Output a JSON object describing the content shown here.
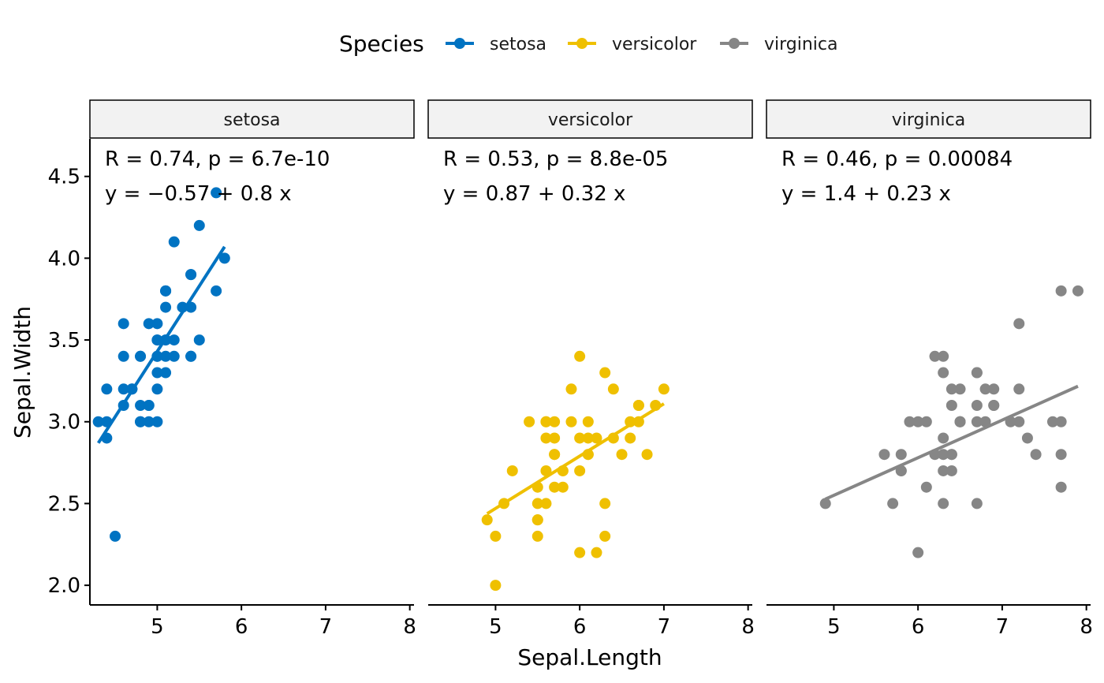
{
  "chart_data": {
    "type": "scatter",
    "facet_by": "Species",
    "xlabel": "Sepal.Length",
    "ylabel": "Sepal.Width",
    "xticks": [
      5,
      6,
      7,
      8
    ],
    "yticks": [
      "2.0",
      "2.5",
      "3.0",
      "3.5",
      "4.0",
      "4.5"
    ],
    "xlim": [
      4.2,
      8.05
    ],
    "ylim": [
      1.88,
      4.73
    ],
    "grid": false,
    "legend": {
      "title": "Species",
      "position": "top",
      "entries": [
        "setosa",
        "versicolor",
        "virginica"
      ]
    },
    "colors": {
      "setosa": "#0073C2",
      "versicolor": "#EFC000",
      "virginica": "#868686"
    },
    "panels": [
      {
        "name": "setosa",
        "annotation_r": "R = 0.74, p = 6.7e-10",
        "annotation_eq": "y = −0.57 + 0.8 x",
        "regression": {
          "intercept": -0.57,
          "slope": 0.8,
          "x_range": [
            4.3,
            5.8
          ]
        },
        "points": [
          [
            5.1,
            3.5
          ],
          [
            4.9,
            3.0
          ],
          [
            4.7,
            3.2
          ],
          [
            4.6,
            3.1
          ],
          [
            5.0,
            3.6
          ],
          [
            5.4,
            3.9
          ],
          [
            4.6,
            3.4
          ],
          [
            5.0,
            3.4
          ],
          [
            4.4,
            2.9
          ],
          [
            4.9,
            3.1
          ],
          [
            5.4,
            3.7
          ],
          [
            4.8,
            3.4
          ],
          [
            4.8,
            3.0
          ],
          [
            4.3,
            3.0
          ],
          [
            5.8,
            4.0
          ],
          [
            5.7,
            4.4
          ],
          [
            5.4,
            3.9
          ],
          [
            5.1,
            3.5
          ],
          [
            5.7,
            3.8
          ],
          [
            5.1,
            3.8
          ],
          [
            5.4,
            3.4
          ],
          [
            5.1,
            3.7
          ],
          [
            4.6,
            3.6
          ],
          [
            5.1,
            3.3
          ],
          [
            4.8,
            3.4
          ],
          [
            5.0,
            3.0
          ],
          [
            5.0,
            3.4
          ],
          [
            5.2,
            3.5
          ],
          [
            5.2,
            3.4
          ],
          [
            4.7,
            3.2
          ],
          [
            4.8,
            3.1
          ],
          [
            5.4,
            3.4
          ],
          [
            5.2,
            4.1
          ],
          [
            5.5,
            4.2
          ],
          [
            4.9,
            3.1
          ],
          [
            5.0,
            3.2
          ],
          [
            5.5,
            3.5
          ],
          [
            4.9,
            3.6
          ],
          [
            4.4,
            3.0
          ],
          [
            5.1,
            3.4
          ],
          [
            5.0,
            3.5
          ],
          [
            4.5,
            2.3
          ],
          [
            4.4,
            3.2
          ],
          [
            5.0,
            3.5
          ],
          [
            5.1,
            3.8
          ],
          [
            4.8,
            3.0
          ],
          [
            5.1,
            3.8
          ],
          [
            4.6,
            3.2
          ],
          [
            5.3,
            3.7
          ],
          [
            5.0,
            3.3
          ]
        ]
      },
      {
        "name": "versicolor",
        "annotation_r": "R = 0.53, p = 8.8e-05",
        "annotation_eq": "y = 0.87 + 0.32 x",
        "regression": {
          "intercept": 0.87,
          "slope": 0.32,
          "x_range": [
            4.9,
            7.0
          ]
        },
        "points": [
          [
            7.0,
            3.2
          ],
          [
            6.4,
            3.2
          ],
          [
            6.9,
            3.1
          ],
          [
            5.5,
            2.3
          ],
          [
            6.5,
            2.8
          ],
          [
            5.7,
            2.8
          ],
          [
            6.3,
            3.3
          ],
          [
            4.9,
            2.4
          ],
          [
            6.6,
            2.9
          ],
          [
            5.2,
            2.7
          ],
          [
            5.0,
            2.0
          ],
          [
            5.9,
            3.0
          ],
          [
            6.0,
            2.2
          ],
          [
            6.1,
            2.9
          ],
          [
            5.6,
            2.9
          ],
          [
            6.7,
            3.1
          ],
          [
            5.6,
            3.0
          ],
          [
            5.8,
            2.7
          ],
          [
            6.2,
            2.2
          ],
          [
            5.6,
            2.5
          ],
          [
            5.9,
            3.2
          ],
          [
            6.1,
            2.8
          ],
          [
            6.3,
            2.5
          ],
          [
            6.1,
            2.8
          ],
          [
            6.4,
            2.9
          ],
          [
            6.6,
            3.0
          ],
          [
            6.8,
            2.8
          ],
          [
            6.7,
            3.0
          ],
          [
            6.0,
            2.9
          ],
          [
            5.7,
            2.6
          ],
          [
            5.5,
            2.4
          ],
          [
            5.5,
            2.4
          ],
          [
            5.8,
            2.7
          ],
          [
            6.0,
            2.7
          ],
          [
            5.4,
            3.0
          ],
          [
            6.0,
            3.4
          ],
          [
            6.7,
            3.1
          ],
          [
            6.3,
            2.3
          ],
          [
            5.6,
            3.0
          ],
          [
            5.5,
            2.5
          ],
          [
            5.5,
            2.6
          ],
          [
            6.1,
            3.0
          ],
          [
            5.8,
            2.6
          ],
          [
            5.0,
            2.3
          ],
          [
            5.6,
            2.7
          ],
          [
            5.7,
            3.0
          ],
          [
            5.7,
            2.9
          ],
          [
            6.2,
            2.9
          ],
          [
            5.1,
            2.5
          ],
          [
            5.7,
            2.8
          ]
        ]
      },
      {
        "name": "virginica",
        "annotation_r": "R = 0.46, p = 0.00084",
        "annotation_eq": "y = 1.4 + 0.23 x",
        "regression": {
          "intercept": 1.4,
          "slope": 0.23,
          "x_range": [
            4.9,
            7.9
          ]
        },
        "points": [
          [
            6.3,
            3.3
          ],
          [
            5.8,
            2.7
          ],
          [
            7.1,
            3.0
          ],
          [
            6.3,
            2.9
          ],
          [
            6.5,
            3.0
          ],
          [
            7.6,
            3.0
          ],
          [
            4.9,
            2.5
          ],
          [
            7.3,
            2.9
          ],
          [
            6.7,
            2.5
          ],
          [
            7.2,
            3.6
          ],
          [
            6.5,
            3.2
          ],
          [
            6.4,
            2.7
          ],
          [
            6.8,
            3.0
          ],
          [
            5.7,
            2.5
          ],
          [
            5.8,
            2.8
          ],
          [
            6.4,
            3.2
          ],
          [
            6.5,
            3.0
          ],
          [
            7.7,
            3.8
          ],
          [
            7.7,
            2.6
          ],
          [
            6.0,
            2.2
          ],
          [
            6.9,
            3.2
          ],
          [
            5.6,
            2.8
          ],
          [
            7.7,
            2.8
          ],
          [
            6.3,
            2.7
          ],
          [
            6.7,
            3.3
          ],
          [
            7.2,
            3.2
          ],
          [
            6.2,
            2.8
          ],
          [
            6.1,
            3.0
          ],
          [
            6.4,
            2.8
          ],
          [
            7.2,
            3.0
          ],
          [
            7.4,
            2.8
          ],
          [
            7.9,
            3.8
          ],
          [
            6.4,
            2.8
          ],
          [
            6.3,
            2.8
          ],
          [
            6.1,
            2.6
          ],
          [
            7.7,
            3.0
          ],
          [
            6.3,
            3.4
          ],
          [
            6.4,
            3.1
          ],
          [
            6.0,
            3.0
          ],
          [
            6.9,
            3.1
          ],
          [
            6.7,
            3.1
          ],
          [
            6.9,
            3.1
          ],
          [
            5.8,
            2.7
          ],
          [
            6.8,
            3.2
          ],
          [
            6.7,
            3.3
          ],
          [
            6.7,
            3.0
          ],
          [
            6.3,
            2.5
          ],
          [
            6.5,
            3.0
          ],
          [
            6.2,
            3.4
          ],
          [
            5.9,
            3.0
          ]
        ]
      }
    ]
  }
}
